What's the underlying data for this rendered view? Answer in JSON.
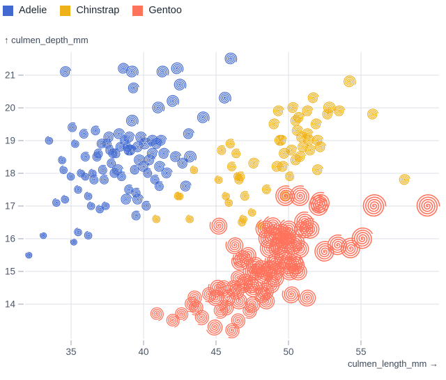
{
  "chart_data": {
    "type": "scatter",
    "marker": "spiral",
    "title": "",
    "xlabel": "culmen_length_mm →",
    "ylabel": "↑ culmen_depth_mm",
    "x_ticks": [
      35,
      40,
      45,
      50,
      55
    ],
    "y_ticks": [
      14,
      15,
      16,
      17,
      18,
      19,
      20,
      21
    ],
    "xlim": [
      31.9,
      60.4
    ],
    "ylim": [
      12.9,
      21.7
    ],
    "grid": true,
    "legend_position": "top-left",
    "colors": {
      "grid": "#dcdfe4",
      "tick": "#9aa3b2",
      "tick_label": "#4b5768",
      "axis_title": "#3f4a5b",
      "legend_text": "#1c2733",
      "background": "#ffffff"
    },
    "series": [
      {
        "name": "Adelie",
        "color": "#4269d0",
        "points": [
          [
            32.1,
            15.5,
            5
          ],
          [
            33.1,
            16.1,
            5
          ],
          [
            33.5,
            19.0,
            6
          ],
          [
            34.0,
            17.1,
            6
          ],
          [
            34.4,
            18.4,
            6
          ],
          [
            34.5,
            18.1,
            6
          ],
          [
            34.6,
            21.1,
            8
          ],
          [
            34.6,
            17.2,
            6
          ],
          [
            35.0,
            17.9,
            6
          ],
          [
            35.1,
            19.4,
            7
          ],
          [
            35.2,
            15.9,
            5
          ],
          [
            35.3,
            18.9,
            6
          ],
          [
            35.5,
            16.2,
            6
          ],
          [
            35.5,
            17.5,
            6
          ],
          [
            35.7,
            18.0,
            6
          ],
          [
            35.9,
            19.2,
            7
          ],
          [
            36.0,
            17.9,
            6
          ],
          [
            36.0,
            18.5,
            7
          ],
          [
            36.2,
            16.1,
            6
          ],
          [
            36.2,
            17.3,
            6
          ],
          [
            36.4,
            17.0,
            6
          ],
          [
            36.5,
            18.0,
            6
          ],
          [
            36.6,
            17.8,
            7
          ],
          [
            36.7,
            19.3,
            7
          ],
          [
            36.8,
            18.5,
            7
          ],
          [
            36.9,
            18.6,
            7
          ],
          [
            37.0,
            16.9,
            6
          ],
          [
            37.1,
            18.9,
            7
          ],
          [
            37.2,
            18.1,
            7
          ],
          [
            37.3,
            17.8,
            7
          ],
          [
            37.4,
            17.0,
            6
          ],
          [
            37.5,
            18.9,
            7
          ],
          [
            37.6,
            19.1,
            8
          ],
          [
            37.7,
            18.7,
            7
          ],
          [
            37.8,
            18.3,
            7
          ],
          [
            37.9,
            18.6,
            7
          ],
          [
            38.0,
            18.0,
            7
          ],
          [
            38.1,
            18.6,
            7
          ],
          [
            38.2,
            18.1,
            8
          ],
          [
            38.3,
            19.2,
            8
          ],
          [
            38.4,
            18.8,
            7
          ],
          [
            38.5,
            17.9,
            7
          ],
          [
            38.6,
            21.2,
            8
          ],
          [
            38.7,
            19.0,
            7
          ],
          [
            38.8,
            17.2,
            8
          ],
          [
            38.9,
            18.8,
            7
          ],
          [
            39.0,
            17.5,
            7
          ],
          [
            39.0,
            18.7,
            8
          ],
          [
            39.0,
            19.1,
            8
          ],
          [
            39.1,
            18.7,
            8
          ],
          [
            39.2,
            19.6,
            9
          ],
          [
            39.2,
            21.1,
            9
          ],
          [
            39.3,
            20.6,
            8
          ],
          [
            39.4,
            18.1,
            7
          ],
          [
            39.5,
            16.7,
            7
          ],
          [
            39.5,
            17.4,
            7
          ],
          [
            39.6,
            17.2,
            8
          ],
          [
            39.6,
            18.8,
            8
          ],
          [
            39.7,
            18.4,
            8
          ],
          [
            39.8,
            19.1,
            8
          ],
          [
            40.0,
            18.2,
            8
          ],
          [
            40.1,
            18.9,
            9
          ],
          [
            40.2,
            17.0,
            7
          ],
          [
            40.3,
            18.0,
            7
          ],
          [
            40.4,
            18.4,
            8
          ],
          [
            40.6,
            18.6,
            8
          ],
          [
            40.6,
            19.0,
            8
          ],
          [
            40.8,
            17.8,
            7
          ],
          [
            40.9,
            18.9,
            8
          ],
          [
            41.0,
            20.0,
            9
          ],
          [
            41.1,
            17.6,
            7
          ],
          [
            41.1,
            18.2,
            8
          ],
          [
            41.2,
            19.0,
            8
          ],
          [
            41.3,
            21.1,
            9
          ],
          [
            41.4,
            18.6,
            8
          ],
          [
            41.6,
            18.0,
            8
          ],
          [
            42.0,
            20.2,
            9
          ],
          [
            42.2,
            18.5,
            8
          ],
          [
            42.3,
            21.2,
            9
          ],
          [
            42.5,
            20.7,
            9
          ],
          [
            42.7,
            18.3,
            8
          ],
          [
            42.9,
            17.6,
            8
          ],
          [
            43.1,
            19.2,
            8
          ],
          [
            43.2,
            18.5,
            9
          ],
          [
            44.1,
            19.7,
            9
          ],
          [
            45.6,
            20.3,
            9
          ],
          [
            46.0,
            21.5,
            9
          ]
        ]
      },
      {
        "name": "Chinstrap",
        "color": "#efb118",
        "points": [
          [
            40.9,
            16.6,
            6
          ],
          [
            42.4,
            17.3,
            6
          ],
          [
            42.5,
            17.3,
            6
          ],
          [
            43.2,
            16.6,
            6
          ],
          [
            43.5,
            18.1,
            6
          ],
          [
            45.2,
            17.8,
            6
          ],
          [
            45.4,
            18.7,
            7
          ],
          [
            45.7,
            17.3,
            6
          ],
          [
            45.9,
            17.1,
            6
          ],
          [
            46.0,
            18.9,
            7
          ],
          [
            46.1,
            18.2,
            7
          ],
          [
            46.4,
            18.6,
            7
          ],
          [
            46.5,
            17.9,
            6
          ],
          [
            46.6,
            17.8,
            7
          ],
          [
            46.7,
            17.9,
            7
          ],
          [
            46.8,
            16.5,
            6
          ],
          [
            46.9,
            16.6,
            6
          ],
          [
            47.0,
            17.3,
            7
          ],
          [
            47.5,
            16.8,
            6
          ],
          [
            47.6,
            18.3,
            8
          ],
          [
            48.1,
            16.4,
            6
          ],
          [
            48.5,
            17.5,
            7
          ],
          [
            49.0,
            19.5,
            8
          ],
          [
            49.2,
            18.2,
            8
          ],
          [
            49.3,
            19.9,
            8
          ],
          [
            49.4,
            19.0,
            8
          ],
          [
            49.5,
            19.0,
            8
          ],
          [
            49.6,
            18.2,
            8
          ],
          [
            49.7,
            18.6,
            8
          ],
          [
            49.8,
            17.3,
            7
          ],
          [
            50.1,
            17.9,
            7
          ],
          [
            50.2,
            18.7,
            8
          ],
          [
            50.3,
            20.0,
            8
          ],
          [
            50.5,
            18.4,
            8
          ],
          [
            50.5,
            19.6,
            8
          ],
          [
            50.6,
            19.3,
            8
          ],
          [
            50.7,
            19.7,
            8
          ],
          [
            50.8,
            18.5,
            8
          ],
          [
            50.9,
            19.1,
            8
          ],
          [
            51.0,
            18.8,
            8
          ],
          [
            51.3,
            19.2,
            8
          ],
          [
            51.3,
            19.9,
            8
          ],
          [
            51.4,
            19.0,
            8
          ],
          [
            51.5,
            18.7,
            8
          ],
          [
            51.7,
            20.3,
            8
          ],
          [
            51.9,
            19.5,
            8
          ],
          [
            52.0,
            18.1,
            8
          ],
          [
            52.0,
            19.0,
            8
          ],
          [
            52.2,
            18.8,
            8
          ],
          [
            52.7,
            19.8,
            8
          ],
          [
            52.8,
            20.0,
            9
          ],
          [
            53.5,
            19.9,
            8
          ],
          [
            54.2,
            20.8,
            9
          ],
          [
            55.8,
            19.8,
            8
          ],
          [
            58.0,
            17.8,
            8
          ]
        ]
      },
      {
        "name": "Gentoo",
        "color": "#ff725c",
        "points": [
          [
            40.9,
            13.7,
            10
          ],
          [
            42.0,
            13.5,
            10
          ],
          [
            42.6,
            13.7,
            10
          ],
          [
            43.3,
            14.0,
            11
          ],
          [
            43.5,
            14.2,
            11
          ],
          [
            43.6,
            13.9,
            11
          ],
          [
            44.0,
            13.6,
            11
          ],
          [
            44.5,
            14.3,
            11
          ],
          [
            44.9,
            13.3,
            12
          ],
          [
            45.0,
            14.2,
            12
          ],
          [
            45.1,
            14.5,
            13
          ],
          [
            45.2,
            16.4,
            13
          ],
          [
            45.3,
            13.8,
            11
          ],
          [
            45.5,
            14.5,
            12
          ],
          [
            45.7,
            13.9,
            11
          ],
          [
            45.8,
            14.2,
            12
          ],
          [
            46.1,
            13.2,
            11
          ],
          [
            46.2,
            14.5,
            12
          ],
          [
            46.3,
            15.8,
            13
          ],
          [
            46.4,
            14.4,
            12
          ],
          [
            46.5,
            13.5,
            11
          ],
          [
            46.5,
            14.8,
            12
          ],
          [
            46.6,
            14.1,
            12
          ],
          [
            46.7,
            15.3,
            13
          ],
          [
            46.8,
            15.4,
            13
          ],
          [
            46.9,
            14.6,
            12
          ],
          [
            47.0,
            14.7,
            12
          ],
          [
            47.2,
            15.5,
            13
          ],
          [
            47.3,
            13.8,
            11
          ],
          [
            47.4,
            14.6,
            12
          ],
          [
            47.5,
            14.0,
            12
          ],
          [
            47.5,
            15.0,
            13
          ],
          [
            47.6,
            14.5,
            14
          ],
          [
            47.7,
            15.2,
            13
          ],
          [
            47.8,
            15.0,
            13
          ],
          [
            48.1,
            15.1,
            13
          ],
          [
            48.2,
            14.3,
            12
          ],
          [
            48.3,
            14.9,
            13
          ],
          [
            48.4,
            14.4,
            13
          ],
          [
            48.4,
            16.3,
            14
          ],
          [
            48.5,
            14.1,
            12
          ],
          [
            48.5,
            15.0,
            13
          ],
          [
            48.6,
            16.0,
            14
          ],
          [
            48.7,
            15.1,
            13
          ],
          [
            48.7,
            15.7,
            14
          ],
          [
            48.8,
            14.6,
            13
          ],
          [
            48.9,
            16.4,
            14
          ],
          [
            49.0,
            15.3,
            13
          ],
          [
            49.0,
            16.1,
            14
          ],
          [
            49.1,
            14.8,
            13
          ],
          [
            49.1,
            15.0,
            13
          ],
          [
            49.2,
            15.2,
            14
          ],
          [
            49.3,
            15.7,
            14
          ],
          [
            49.4,
            15.8,
            14
          ],
          [
            49.5,
            16.2,
            14
          ],
          [
            49.6,
            16.0,
            14
          ],
          [
            49.7,
            15.4,
            14
          ],
          [
            49.8,
            15.9,
            14
          ],
          [
            49.8,
            17.3,
            15
          ],
          [
            49.9,
            16.1,
            14
          ],
          [
            50.0,
            15.2,
            14
          ],
          [
            50.0,
            16.3,
            14
          ],
          [
            50.1,
            15.0,
            13
          ],
          [
            50.2,
            14.3,
            13
          ],
          [
            50.3,
            15.8,
            14
          ],
          [
            50.4,
            15.3,
            14
          ],
          [
            50.5,
            15.2,
            14
          ],
          [
            50.5,
            15.9,
            14
          ],
          [
            50.7,
            15.0,
            13
          ],
          [
            50.8,
            15.7,
            14
          ],
          [
            50.8,
            17.3,
            15
          ],
          [
            51.1,
            16.3,
            14
          ],
          [
            51.1,
            16.5,
            15
          ],
          [
            51.3,
            14.2,
            13
          ],
          [
            51.5,
            16.3,
            15
          ],
          [
            52.1,
            17.0,
            15
          ],
          [
            52.2,
            17.1,
            15
          ],
          [
            52.5,
            15.6,
            15
          ],
          [
            53.4,
            15.8,
            15
          ],
          [
            54.3,
            15.7,
            15
          ],
          [
            55.1,
            16.0,
            16
          ],
          [
            55.9,
            17.0,
            17
          ],
          [
            59.6,
            17.0,
            17
          ]
        ]
      }
    ]
  }
}
